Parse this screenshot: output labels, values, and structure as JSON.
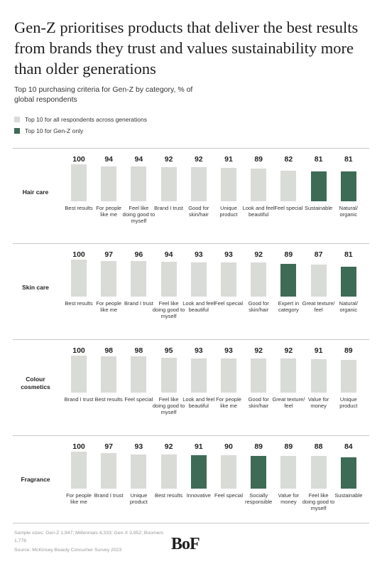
{
  "title": "Gen-Z prioritises products that deliver the best results from brands they trust and values sustainability more than older generations",
  "subtitle": "Top 10 purchasing criteria for Gen-Z by category, % of global respondents",
  "legend": [
    {
      "label": "Top 10 for all respondents across generations",
      "color": "#d9dbd7"
    },
    {
      "label": "Top 10 for Gen-Z only",
      "color": "#3e6b56"
    }
  ],
  "chart_data": [
    {
      "type": "bar",
      "title": "Hair care",
      "categories": [
        "Best results",
        "For people like me",
        "Feel like doing good to myself",
        "Brand I trust",
        "Good for skin/hair",
        "Unique product",
        "Look and feel beautiful",
        "Feel special",
        "Sustainable",
        "Natural/ organic"
      ],
      "values": [
        100,
        94,
        94,
        92,
        92,
        91,
        89,
        82,
        81,
        81
      ],
      "colors": [
        "#d9dbd7",
        "#d9dbd7",
        "#d9dbd7",
        "#d9dbd7",
        "#d9dbd7",
        "#d9dbd7",
        "#d9dbd7",
        "#d9dbd7",
        "#3e6b56",
        "#3e6b56"
      ]
    },
    {
      "type": "bar",
      "title": "Skin care",
      "categories": [
        "Best results",
        "For people like me",
        "Brand I trust",
        "Feel like doing good to myself",
        "Look and feel beautiful",
        "Feel special",
        "Good for skin/hair",
        "Expert in category",
        "Great texture/ feel",
        "Natural/ organic"
      ],
      "values": [
        100,
        97,
        96,
        94,
        93,
        93,
        92,
        89,
        87,
        81
      ],
      "colors": [
        "#d9dbd7",
        "#d9dbd7",
        "#d9dbd7",
        "#d9dbd7",
        "#d9dbd7",
        "#d9dbd7",
        "#d9dbd7",
        "#3e6b56",
        "#d9dbd7",
        "#3e6b56"
      ]
    },
    {
      "type": "bar",
      "title": "Colour cosmetics",
      "categories": [
        "Brand I trust",
        "Best results",
        "Feel special",
        "Feel like doing good to myself",
        "Look and feel beautiful",
        "For people like me",
        "Good for skin/hair",
        "Great texture/ feel",
        "Value for money",
        "Unique product"
      ],
      "values": [
        100,
        98,
        98,
        95,
        93,
        93,
        92,
        92,
        91,
        89
      ],
      "colors": [
        "#d9dbd7",
        "#d9dbd7",
        "#d9dbd7",
        "#d9dbd7",
        "#d9dbd7",
        "#d9dbd7",
        "#d9dbd7",
        "#d9dbd7",
        "#d9dbd7",
        "#d9dbd7"
      ]
    },
    {
      "type": "bar",
      "title": "Fragrance",
      "categories": [
        "For people like me",
        "Brand I trust",
        "Unique product",
        "Best results",
        "Innovative",
        "Feel special",
        "Socially responsible",
        "Value for money",
        "Feel like doing good to myself",
        "Sustainable"
      ],
      "values": [
        100,
        97,
        93,
        92,
        91,
        90,
        89,
        89,
        88,
        84
      ],
      "colors": [
        "#d9dbd7",
        "#d9dbd7",
        "#d9dbd7",
        "#d9dbd7",
        "#3e6b56",
        "#d9dbd7",
        "#3e6b56",
        "#d9dbd7",
        "#d9dbd7",
        "#3e6b56"
      ]
    }
  ],
  "footer": {
    "sample_sizes": "Sample sizes: Gen-Z 1,947; Millennials 4,333; Gen-X 3,952; Boomers 1,778",
    "source": "Source: McKinsey Beauty Consumer Survey 2023",
    "logo": "BoF"
  }
}
